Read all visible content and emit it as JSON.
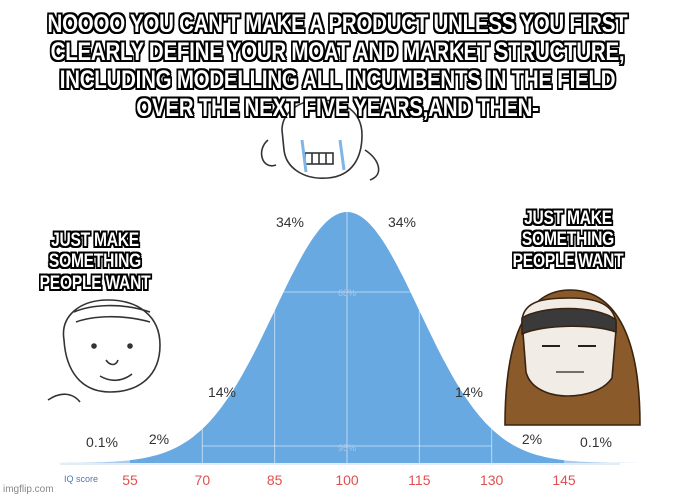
{
  "meme": {
    "top_caption": "NOOOO YOU CAN'T MAKE A PRODUCT UNLESS YOU FIRST CLEARLY DEFINE YOUR MOAT AND MARKET STRUCTURE, INCLUDING MODELLING ALL INCUMBENTS IN THE FIELD OVER THE NEXT FIVE YEARS,AND THEN-",
    "left_caption": "JUST MAKE SOMETHING PEOPLE WANT",
    "right_caption": "JUST MAKE SOMETHING PEOPLE WANT",
    "watermark": "imgflip.com"
  },
  "colors": {
    "curve_fill": "#a9ccee",
    "band_fill": "#69a9e2",
    "tick_text": "#e05050",
    "label_text": "#333333",
    "axis_line": "#c9d9ea"
  },
  "chart_data": {
    "type": "area",
    "distribution": "normal",
    "mean": 100,
    "sd": 15,
    "axis_label": "IQ score",
    "x_ticks": [
      "55",
      "70",
      "85",
      "100",
      "115",
      "130",
      "145"
    ],
    "segment_labels": [
      "0.1%",
      "2%",
      "14%",
      "34%",
      "34%",
      "14%",
      "2%",
      "0.1%"
    ],
    "inner_labels": [
      "68%",
      "95%"
    ]
  }
}
